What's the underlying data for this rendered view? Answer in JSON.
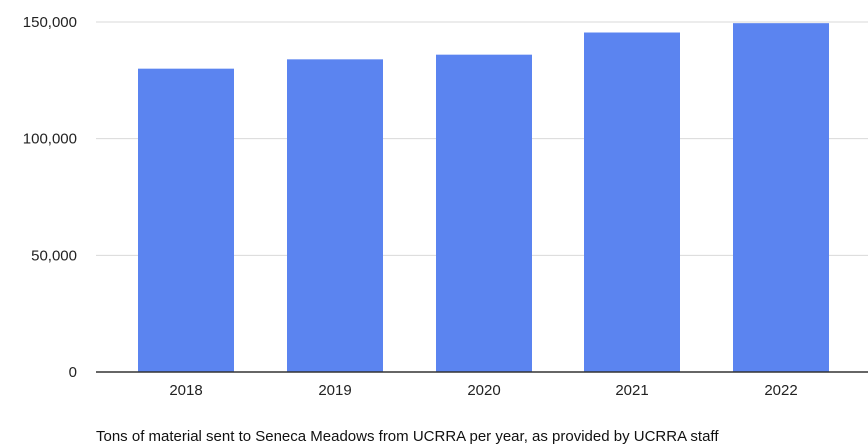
{
  "chart_data": {
    "type": "bar",
    "categories": [
      "2018",
      "2019",
      "2020",
      "2021",
      "2022"
    ],
    "series": [
      {
        "values": [
          130000,
          134000,
          136000,
          145500,
          149500
        ]
      }
    ],
    "title": "",
    "xlabel": "Tons of material sent to Seneca Meadows from UCRRA per year, as provided by UCRRA staff",
    "ylabel": "",
    "ylim": [
      0,
      150000
    ],
    "yticks": [
      0,
      50000,
      100000,
      150000
    ],
    "ytick_labels": [
      "0",
      "50,000",
      "100,000",
      "150,000"
    ],
    "grid": true,
    "legend": "none",
    "colors": {
      "bar": "#5b84f0",
      "grid": "#d9d9d9",
      "axis": "#333333"
    }
  }
}
